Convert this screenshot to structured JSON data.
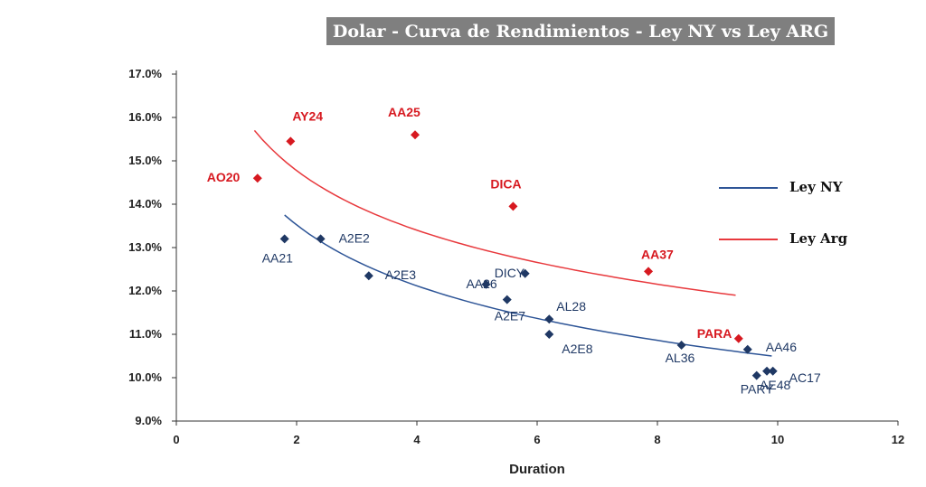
{
  "chart_data": {
    "type": "scatter",
    "title": "Dolar - Curva de Rendimientos - Ley NY vs Ley ARG",
    "xlabel": "Duration",
    "ylabel": "",
    "xlim": [
      0,
      12
    ],
    "ylim": [
      9.0,
      17.0
    ],
    "x_ticks": [
      "0",
      "2",
      "4",
      "6",
      "8",
      "10",
      "12"
    ],
    "y_ticks": [
      "9.0%",
      "10.0%",
      "11.0%",
      "12.0%",
      "13.0%",
      "14.0%",
      "15.0%",
      "16.0%",
      "17.0%"
    ],
    "legend_position": "right",
    "series": [
      {
        "name": "Ley NY",
        "color": "#1f3864",
        "line_color": "#2e5597",
        "points": [
          {
            "label": "AA21",
            "x": 1.8,
            "y": 13.2
          },
          {
            "label": "A2E2",
            "x": 2.4,
            "y": 13.2
          },
          {
            "label": "A2E3",
            "x": 3.2,
            "y": 12.35
          },
          {
            "label": "AA26",
            "x": 5.15,
            "y": 12.15
          },
          {
            "label": "DICY",
            "x": 5.8,
            "y": 12.4
          },
          {
            "label": "A2E7",
            "x": 5.5,
            "y": 11.8
          },
          {
            "label": "AL28",
            "x": 6.2,
            "y": 11.35
          },
          {
            "label": "A2E8",
            "x": 6.2,
            "y": 11.0
          },
          {
            "label": "AL36",
            "x": 8.4,
            "y": 10.75
          },
          {
            "label": "AA46",
            "x": 9.5,
            "y": 10.65
          },
          {
            "label": "PARY",
            "x": 9.65,
            "y": 10.05
          },
          {
            "label": "AE48",
            "x": 9.82,
            "y": 10.15
          },
          {
            "label": "AC17",
            "x": 9.92,
            "y": 10.15
          }
        ],
        "trend": {
          "x_start": 1.8,
          "x_end": 9.9,
          "y_start": 13.75,
          "y_end": 10.5
        }
      },
      {
        "name": "Ley Arg",
        "color": "#d71920",
        "line_color": "#e8393d",
        "points": [
          {
            "label": "AO20",
            "x": 1.35,
            "y": 14.6
          },
          {
            "label": "AY24",
            "x": 1.9,
            "y": 15.45
          },
          {
            "label": "AA25",
            "x": 3.97,
            "y": 15.6
          },
          {
            "label": "DICA",
            "x": 5.6,
            "y": 13.95
          },
          {
            "label": "AA37",
            "x": 7.85,
            "y": 12.45
          },
          {
            "label": "PARA",
            "x": 9.35,
            "y": 10.9
          }
        ],
        "trend": {
          "x_start": 1.3,
          "x_end": 9.3,
          "y_start": 15.7,
          "y_end": 11.9
        }
      }
    ]
  }
}
